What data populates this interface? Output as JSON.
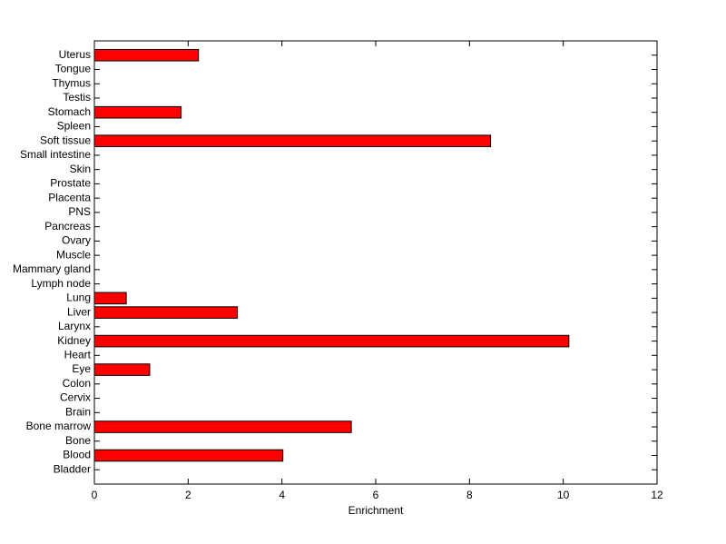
{
  "chart_data": {
    "type": "barh",
    "xlabel": "Enrichment",
    "categories": [
      "Bladder",
      "Blood",
      "Bone",
      "Bone marrow",
      "Brain",
      "Cervix",
      "Colon",
      "Eye",
      "Heart",
      "Kidney",
      "Larynx",
      "Liver",
      "Lung",
      "Lymph node",
      "Mammary gland",
      "Muscle",
      "Ovary",
      "Pancreas",
      "PNS",
      "Placenta",
      "Prostate",
      "Skin",
      "Small intestine",
      "Soft tissue",
      "Spleen",
      "Stomach",
      "Testis",
      "Thymus",
      "Tongue",
      "Uterus"
    ],
    "values": [
      0,
      4.02,
      0,
      5.48,
      0,
      0,
      0,
      1.18,
      0,
      10.12,
      0,
      3.05,
      0.68,
      0,
      0,
      0,
      0,
      0,
      0,
      0,
      0,
      0,
      0,
      8.45,
      0,
      1.85,
      0,
      0,
      0,
      2.22
    ],
    "color": "#ff0000",
    "xlim": [
      0,
      12
    ],
    "xticks": [
      0,
      2,
      4,
      6,
      8,
      10,
      12
    ]
  }
}
